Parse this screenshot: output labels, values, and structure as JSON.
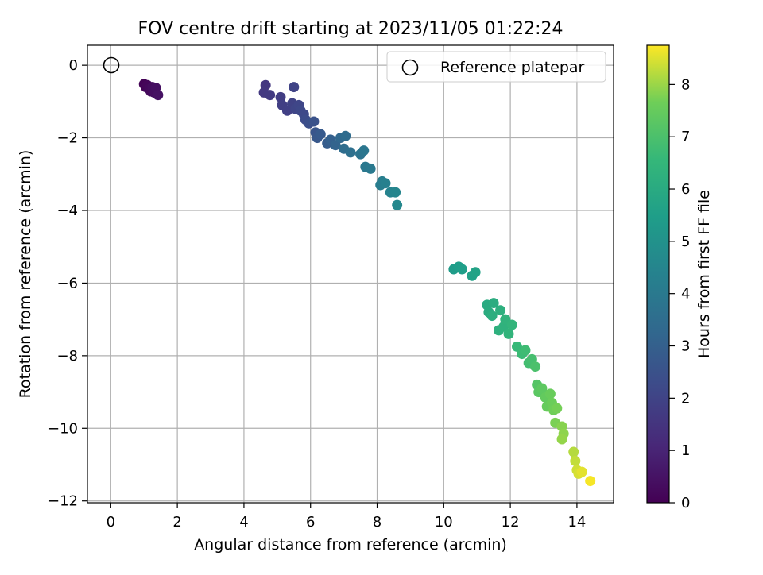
{
  "chart_data": {
    "type": "scatter",
    "title": "FOV centre drift starting at 2023/11/05 01:22:24",
    "xlabel": "Angular distance from reference (arcmin)",
    "ylabel": "Rotation from reference (arcmin)",
    "xlim": [
      -0.7,
      15.1
    ],
    "ylim": [
      -12.05,
      0.55
    ],
    "xticks": [
      0,
      2,
      4,
      6,
      8,
      10,
      12,
      14
    ],
    "yticks": [
      0,
      -2,
      -4,
      -6,
      -8,
      -10,
      -12
    ],
    "grid": true,
    "legend": {
      "placement": "top-right",
      "entries": [
        "Reference platepar"
      ]
    },
    "reference_point": {
      "x": 0,
      "y": 0
    },
    "colorbar": {
      "label": "Hours from first FF file",
      "range": [
        0,
        8.75
      ],
      "ticks": [
        0,
        1,
        2,
        3,
        4,
        5,
        6,
        7,
        8
      ],
      "colormap": "viridis"
    },
    "points": [
      {
        "x": 1.0,
        "y": -0.52,
        "h": 0.05
      },
      {
        "x": 1.05,
        "y": -0.6,
        "h": 0.1
      },
      {
        "x": 1.1,
        "y": -0.55,
        "h": 0.15
      },
      {
        "x": 1.15,
        "y": -0.65,
        "h": 0.2
      },
      {
        "x": 1.2,
        "y": -0.72,
        "h": 0.25
      },
      {
        "x": 1.25,
        "y": -0.6,
        "h": 0.3
      },
      {
        "x": 1.3,
        "y": -0.75,
        "h": 0.35
      },
      {
        "x": 1.35,
        "y": -0.62,
        "h": 0.4
      },
      {
        "x": 1.42,
        "y": -0.82,
        "h": 0.45
      },
      {
        "x": 4.65,
        "y": -0.55,
        "h": 1.6
      },
      {
        "x": 4.6,
        "y": -0.75,
        "h": 1.65
      },
      {
        "x": 4.78,
        "y": -0.82,
        "h": 1.7
      },
      {
        "x": 5.1,
        "y": -0.88,
        "h": 1.8
      },
      {
        "x": 5.15,
        "y": -1.1,
        "h": 1.85
      },
      {
        "x": 5.3,
        "y": -1.25,
        "h": 1.9
      },
      {
        "x": 5.45,
        "y": -1.05,
        "h": 1.95
      },
      {
        "x": 5.5,
        "y": -0.6,
        "h": 2.0
      },
      {
        "x": 5.55,
        "y": -1.2,
        "h": 2.05
      },
      {
        "x": 5.65,
        "y": -1.1,
        "h": 2.1
      },
      {
        "x": 5.7,
        "y": -1.25,
        "h": 2.15
      },
      {
        "x": 5.8,
        "y": -1.35,
        "h": 2.2
      },
      {
        "x": 5.85,
        "y": -1.5,
        "h": 2.3
      },
      {
        "x": 5.95,
        "y": -1.6,
        "h": 2.4
      },
      {
        "x": 6.1,
        "y": -1.55,
        "h": 2.5
      },
      {
        "x": 6.15,
        "y": -1.85,
        "h": 2.6
      },
      {
        "x": 6.2,
        "y": -2.0,
        "h": 2.7
      },
      {
        "x": 6.3,
        "y": -1.9,
        "h": 2.8
      },
      {
        "x": 6.5,
        "y": -2.15,
        "h": 2.9
      },
      {
        "x": 6.6,
        "y": -2.05,
        "h": 3.0
      },
      {
        "x": 6.75,
        "y": -2.2,
        "h": 3.15
      },
      {
        "x": 6.9,
        "y": -2.0,
        "h": 3.3
      },
      {
        "x": 7.05,
        "y": -1.95,
        "h": 3.45
      },
      {
        "x": 7.0,
        "y": -2.3,
        "h": 3.5
      },
      {
        "x": 7.2,
        "y": -2.4,
        "h": 3.6
      },
      {
        "x": 7.5,
        "y": -2.45,
        "h": 3.75
      },
      {
        "x": 7.6,
        "y": -2.35,
        "h": 3.85
      },
      {
        "x": 7.65,
        "y": -2.8,
        "h": 3.95
      },
      {
        "x": 7.8,
        "y": -2.85,
        "h": 4.0
      },
      {
        "x": 8.1,
        "y": -3.3,
        "h": 4.15
      },
      {
        "x": 8.15,
        "y": -3.2,
        "h": 4.2
      },
      {
        "x": 8.25,
        "y": -3.25,
        "h": 4.3
      },
      {
        "x": 8.4,
        "y": -3.5,
        "h": 4.4
      },
      {
        "x": 8.55,
        "y": -3.5,
        "h": 4.5
      },
      {
        "x": 8.6,
        "y": -3.85,
        "h": 4.6
      },
      {
        "x": 10.3,
        "y": -5.62,
        "h": 5.4
      },
      {
        "x": 10.45,
        "y": -5.55,
        "h": 5.45
      },
      {
        "x": 10.55,
        "y": -5.62,
        "h": 5.5
      },
      {
        "x": 10.85,
        "y": -5.8,
        "h": 5.6
      },
      {
        "x": 10.95,
        "y": -5.7,
        "h": 5.65
      },
      {
        "x": 11.3,
        "y": -6.6,
        "h": 6.0
      },
      {
        "x": 11.35,
        "y": -6.8,
        "h": 6.05
      },
      {
        "x": 11.5,
        "y": -6.55,
        "h": 6.1
      },
      {
        "x": 11.45,
        "y": -6.9,
        "h": 6.15
      },
      {
        "x": 11.7,
        "y": -6.75,
        "h": 6.2
      },
      {
        "x": 11.65,
        "y": -7.3,
        "h": 6.25
      },
      {
        "x": 11.8,
        "y": -7.2,
        "h": 6.3
      },
      {
        "x": 11.85,
        "y": -7.0,
        "h": 6.35
      },
      {
        "x": 11.95,
        "y": -7.4,
        "h": 6.4
      },
      {
        "x": 12.05,
        "y": -7.15,
        "h": 6.45
      },
      {
        "x": 12.2,
        "y": -7.75,
        "h": 6.6
      },
      {
        "x": 12.35,
        "y": -7.95,
        "h": 6.7
      },
      {
        "x": 12.45,
        "y": -7.85,
        "h": 6.75
      },
      {
        "x": 12.55,
        "y": -8.2,
        "h": 6.85
      },
      {
        "x": 12.65,
        "y": -8.1,
        "h": 6.9
      },
      {
        "x": 12.75,
        "y": -8.3,
        "h": 7.0
      },
      {
        "x": 12.8,
        "y": -8.8,
        "h": 7.2
      },
      {
        "x": 12.85,
        "y": -9.0,
        "h": 7.3
      },
      {
        "x": 12.95,
        "y": -8.9,
        "h": 7.35
      },
      {
        "x": 13.05,
        "y": -9.15,
        "h": 7.45
      },
      {
        "x": 13.1,
        "y": -9.4,
        "h": 7.5
      },
      {
        "x": 13.2,
        "y": -9.05,
        "h": 7.55
      },
      {
        "x": 13.25,
        "y": -9.3,
        "h": 7.6
      },
      {
        "x": 13.3,
        "y": -9.5,
        "h": 7.65
      },
      {
        "x": 13.4,
        "y": -9.45,
        "h": 7.7
      },
      {
        "x": 13.35,
        "y": -9.85,
        "h": 7.75
      },
      {
        "x": 13.55,
        "y": -9.95,
        "h": 7.85
      },
      {
        "x": 13.6,
        "y": -10.15,
        "h": 7.9
      },
      {
        "x": 13.55,
        "y": -10.3,
        "h": 7.95
      },
      {
        "x": 13.9,
        "y": -10.65,
        "h": 8.2
      },
      {
        "x": 13.95,
        "y": -10.9,
        "h": 8.3
      },
      {
        "x": 14.0,
        "y": -11.15,
        "h": 8.4
      },
      {
        "x": 14.05,
        "y": -11.25,
        "h": 8.45
      },
      {
        "x": 14.15,
        "y": -11.2,
        "h": 8.55
      },
      {
        "x": 14.4,
        "y": -11.45,
        "h": 8.7
      }
    ]
  }
}
